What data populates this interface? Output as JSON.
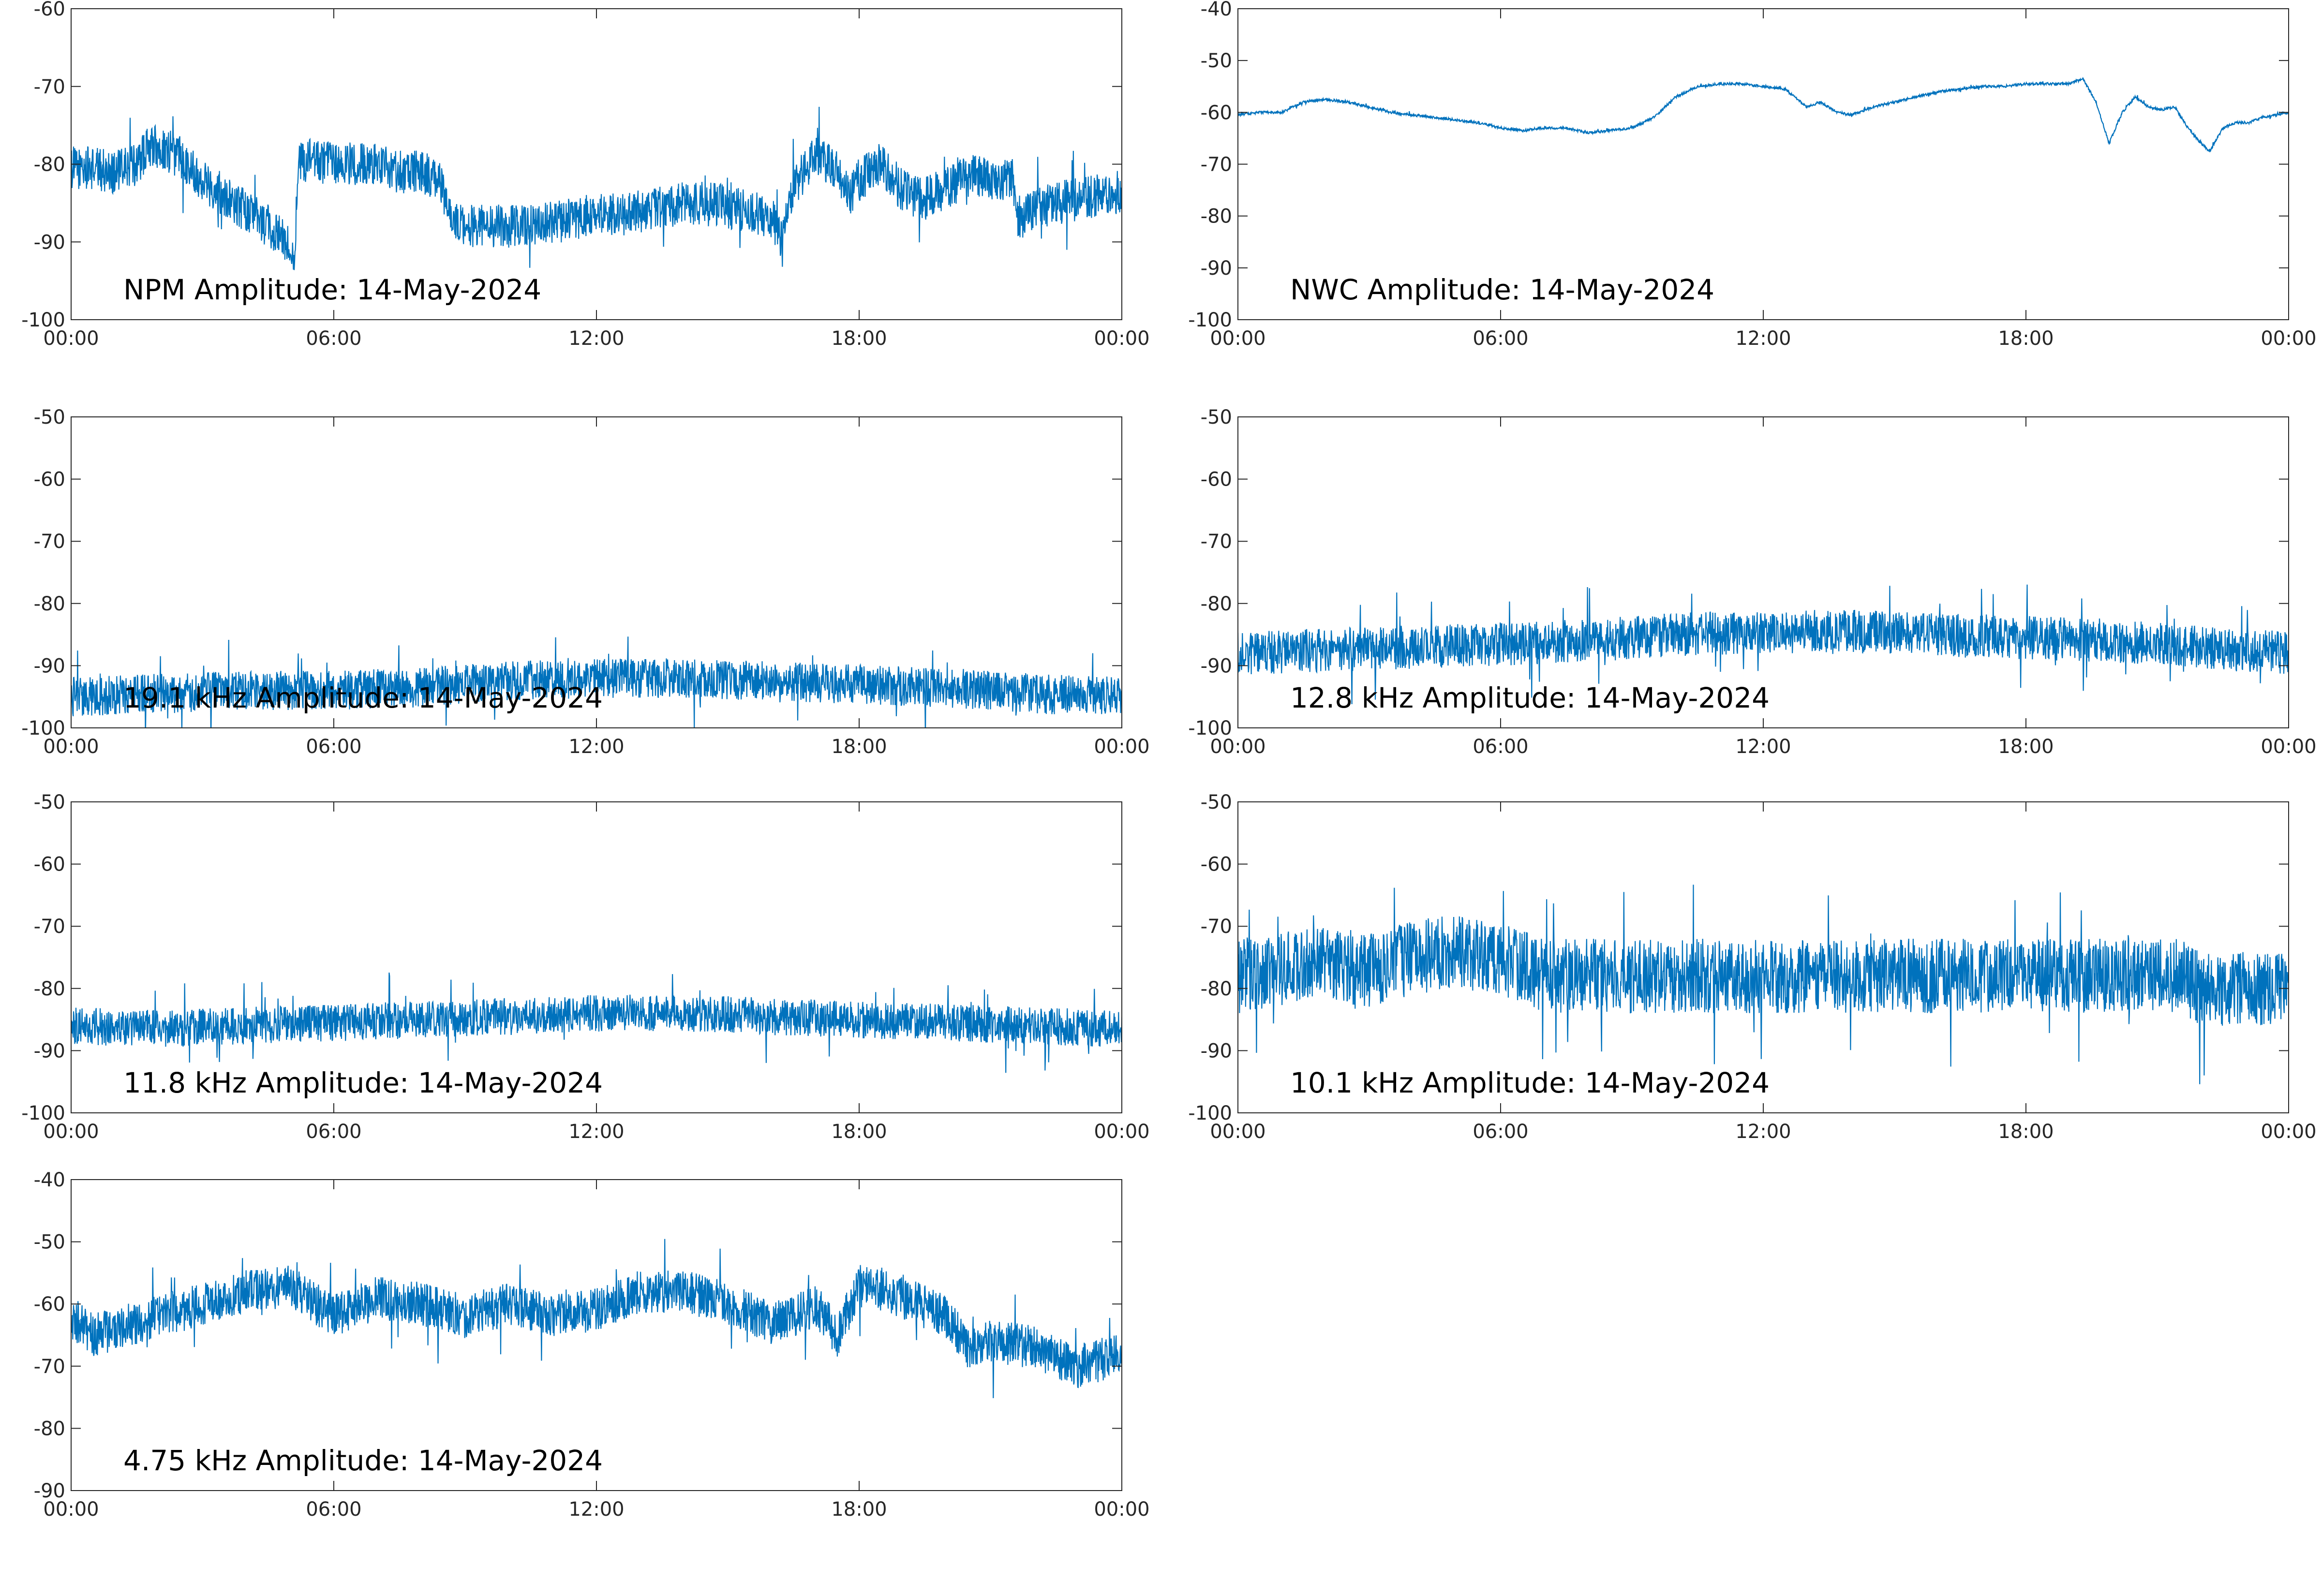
{
  "chart_data": [
    {
      "type": "line",
      "title": "NPM Amplitude: 14-May-2024",
      "xticks": [
        "00:00",
        "06:00",
        "12:00",
        "18:00",
        "00:00"
      ],
      "xlim": [
        0,
        24
      ],
      "ylim": [
        -100,
        -60
      ],
      "yticks": [
        -60,
        -70,
        -80,
        -90,
        -100
      ],
      "color": "#0072BD",
      "series": [
        {
          "x": [
            0,
            0.5,
            1,
            1.5,
            1.8,
            2,
            2.5,
            3,
            3.5,
            4,
            4.5,
            5,
            5.1,
            5.2,
            5.5,
            6,
            6.5,
            7,
            7.5,
            8,
            8.4,
            8.6,
            9,
            9.5,
            10,
            10.5,
            11,
            11.5,
            12,
            12.5,
            13,
            13.5,
            14,
            14.5,
            15,
            15.5,
            16,
            16.2,
            16.5,
            17,
            17.5,
            17.8,
            18,
            18.5,
            19,
            19.5,
            20,
            20.5,
            21,
            21.5,
            21.6,
            22,
            22.5,
            23,
            23.5,
            24
          ],
          "y": [
            -80.5,
            -80.5,
            -81,
            -80,
            -77.5,
            -78,
            -79,
            -82,
            -84,
            -86,
            -88,
            -90.5,
            -91,
            -80,
            -79.5,
            -80,
            -80,
            -80,
            -81,
            -81,
            -82,
            -86,
            -88,
            -88,
            -88,
            -88,
            -87.5,
            -87,
            -86.5,
            -86.5,
            -86,
            -85.5,
            -85,
            -85,
            -85.5,
            -86,
            -87,
            -89,
            -83,
            -79,
            -80.5,
            -84,
            -82,
            -80,
            -83.5,
            -84.5,
            -83,
            -81.5,
            -82,
            -82,
            -87,
            -86,
            -85,
            -84.5,
            -84,
            -83.5
          ],
          "noise": 2.8
        }
      ]
    },
    {
      "type": "line",
      "title": "NWC Amplitude: 14-May-2024",
      "xticks": [
        "00:00",
        "06:00",
        "12:00",
        "18:00",
        "00:00"
      ],
      "xlim": [
        0,
        24
      ],
      "ylim": [
        -100,
        -40
      ],
      "yticks": [
        -40,
        -50,
        -60,
        -70,
        -80,
        -90,
        -100
      ],
      "color": "#0072BD",
      "series": [
        {
          "x": [
            0,
            0.5,
            1,
            1.5,
            2,
            2.5,
            3,
            3.5,
            4,
            4.5,
            5,
            5.5,
            6,
            6.5,
            7,
            7.5,
            8,
            8.5,
            9,
            9.5,
            10,
            10.5,
            11,
            11.5,
            12,
            12.5,
            13,
            13.3,
            13.7,
            14,
            14.5,
            15,
            15.5,
            16,
            16.5,
            17,
            17.5,
            18,
            18.5,
            19,
            19.3,
            19.6,
            19.9,
            20.2,
            20.5,
            20.8,
            21.1,
            21.4,
            21.7,
            22,
            22.2,
            22.5,
            22.8,
            23.1,
            23.4,
            23.7,
            24
          ],
          "y": [
            -60.5,
            -60,
            -60,
            -58,
            -57.5,
            -58,
            -59,
            -60,
            -60.5,
            -61,
            -61.5,
            -62,
            -63,
            -63.5,
            -63,
            -63,
            -64,
            -63.5,
            -63,
            -61,
            -57,
            -55,
            -54.5,
            -54.5,
            -55,
            -55.5,
            -59,
            -58,
            -60,
            -60.5,
            -59,
            -58,
            -57,
            -56,
            -55.5,
            -55,
            -55,
            -54.5,
            -54.5,
            -54.5,
            -53.5,
            -58,
            -66,
            -60,
            -57,
            -59,
            -59.5,
            -59,
            -63,
            -66,
            -67.5,
            -63,
            -62,
            -62,
            -61,
            -60.5,
            -60
          ],
          "noise": 0.25
        }
      ]
    },
    {
      "type": "line",
      "title": "19.1 kHz Amplitude: 14-May-2024",
      "xticks": [
        "00:00",
        "06:00",
        "12:00",
        "18:00",
        "00:00"
      ],
      "xlim": [
        0,
        24
      ],
      "ylim": [
        -100,
        -50
      ],
      "yticks": [
        -50,
        -60,
        -70,
        -80,
        -90,
        -100
      ],
      "color": "#0072BD",
      "series": [
        {
          "x": [
            0,
            2,
            4,
            6,
            8,
            10,
            12,
            14,
            16,
            18,
            20,
            22,
            24
          ],
          "y": [
            -95,
            -94.5,
            -94,
            -94,
            -93.5,
            -92.5,
            -92,
            -92,
            -92.5,
            -93,
            -93.5,
            -94.5,
            -95
          ],
          "noise": 3.2
        }
      ]
    },
    {
      "type": "line",
      "title": "12.8 kHz Amplitude: 14-May-2024",
      "xticks": [
        "00:00",
        "06:00",
        "12:00",
        "18:00",
        "00:00"
      ],
      "xlim": [
        0,
        24
      ],
      "ylim": [
        -100,
        -50
      ],
      "yticks": [
        -50,
        -60,
        -70,
        -80,
        -90,
        -100
      ],
      "color": "#0072BD",
      "series": [
        {
          "x": [
            0,
            2,
            4,
            6,
            8,
            10,
            12,
            14,
            16,
            18,
            20,
            22,
            24
          ],
          "y": [
            -88,
            -87.5,
            -87,
            -86.5,
            -86,
            -85,
            -84.5,
            -84.5,
            -85,
            -85.5,
            -86,
            -87,
            -88
          ],
          "noise": 3.5
        }
      ]
    },
    {
      "type": "line",
      "title": "11.8 kHz Amplitude: 14-May-2024",
      "xticks": [
        "00:00",
        "06:00",
        "12:00",
        "18:00",
        "00:00"
      ],
      "xlim": [
        0,
        24
      ],
      "ylim": [
        -100,
        -50
      ],
      "yticks": [
        -50,
        -60,
        -70,
        -80,
        -90,
        -100
      ],
      "color": "#0072BD",
      "series": [
        {
          "x": [
            0,
            2,
            4,
            6,
            8,
            10,
            12,
            14,
            16,
            18,
            20,
            22,
            24
          ],
          "y": [
            -86,
            -86.5,
            -86,
            -85.5,
            -85,
            -84.5,
            -84,
            -84,
            -84.5,
            -85,
            -85.5,
            -86,
            -86.5
          ],
          "noise": 3
        }
      ]
    },
    {
      "type": "line",
      "title": "10.1 kHz Amplitude: 14-May-2024",
      "xticks": [
        "00:00",
        "06:00",
        "12:00",
        "18:00",
        "00:00"
      ],
      "xlim": [
        0,
        24
      ],
      "ylim": [
        -100,
        -50
      ],
      "yticks": [
        -50,
        -60,
        -70,
        -80,
        -90,
        -100
      ],
      "color": "#0072BD",
      "series": [
        {
          "x": [
            0,
            1,
            2,
            3,
            4,
            5,
            6,
            7,
            8,
            10,
            12,
            14,
            16,
            18,
            20,
            21.5,
            22,
            23,
            24
          ],
          "y": [
            -78,
            -77,
            -76,
            -77,
            -75,
            -74,
            -75,
            -78,
            -78,
            -78,
            -78,
            -78,
            -78,
            -78,
            -78,
            -78,
            -80,
            -80,
            -80
          ],
          "noise": 6
        }
      ]
    },
    {
      "type": "line",
      "title": "4.75 kHz Amplitude: 14-May-2024",
      "xticks": [
        "00:00",
        "06:00",
        "12:00",
        "18:00",
        "00:00"
      ],
      "xlim": [
        0,
        24
      ],
      "ylim": [
        -90,
        -40
      ],
      "yticks": [
        -40,
        -50,
        -60,
        -70,
        -80,
        -90
      ],
      "color": "#0072BD",
      "series": [
        {
          "x": [
            0,
            0.5,
            1,
            2,
            3,
            4,
            5,
            6,
            7,
            8,
            9,
            10,
            11,
            12,
            13,
            14,
            15,
            16,
            16.5,
            17,
            17.5,
            18,
            18.5,
            19,
            20,
            20.5,
            21,
            22,
            23,
            24
          ],
          "y": [
            -62,
            -65,
            -64,
            -62,
            -60,
            -58,
            -57,
            -62,
            -59,
            -60,
            -62,
            -60,
            -62,
            -61,
            -58,
            -58,
            -60,
            -63,
            -62,
            -60,
            -65,
            -57,
            -58,
            -59,
            -62,
            -67,
            -66,
            -67,
            -70,
            -68
          ],
          "noise": 3.5
        }
      ]
    }
  ]
}
